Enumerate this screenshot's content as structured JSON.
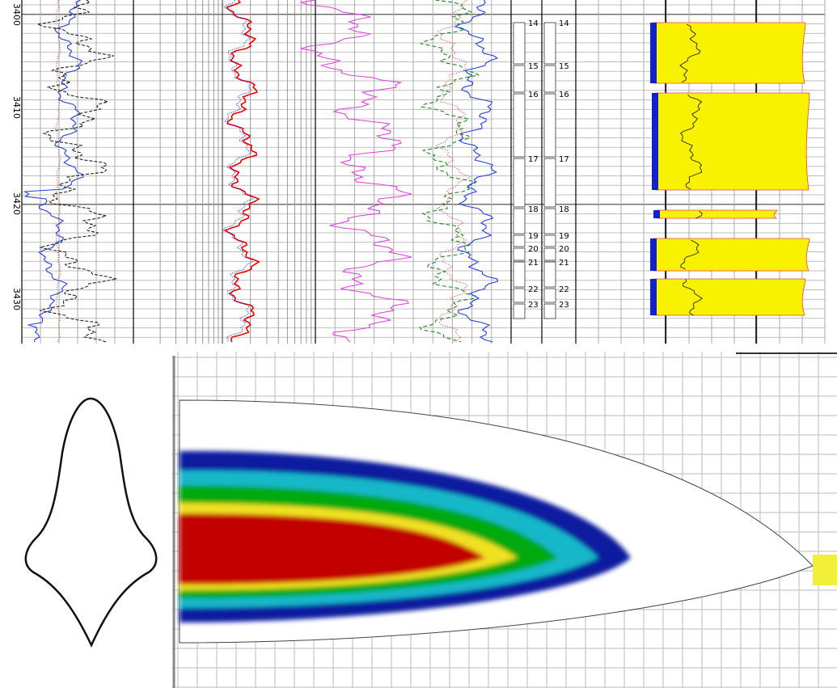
{
  "depth_labels": [
    3400,
    3410,
    3420,
    3430
  ],
  "zones_left": [
    14,
    15,
    16,
    17,
    18,
    19,
    20,
    21,
    22,
    23
  ],
  "zones_right": [
    14,
    15,
    16,
    17,
    18,
    19,
    20,
    21,
    22,
    23
  ]
}
